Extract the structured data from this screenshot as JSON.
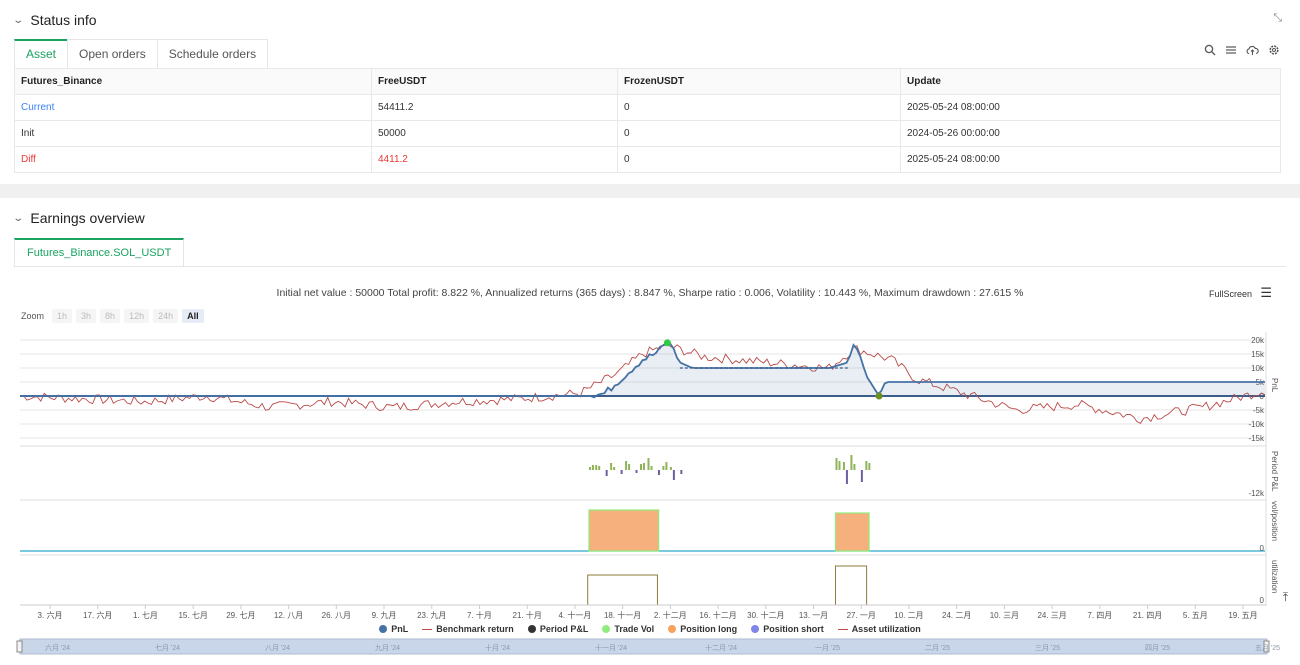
{
  "status": {
    "title": "Status info",
    "tabs": [
      "Asset",
      "Open orders",
      "Schedule orders"
    ],
    "table": {
      "headers": [
        "Futures_Binance",
        "FreeUSDT",
        "FrozenUSDT",
        "Update"
      ],
      "rows": [
        {
          "label": "Current",
          "free": "54411.2",
          "frozen": "0",
          "update": "2025-05-24 08:00:00"
        },
        {
          "label": "Init",
          "free": "50000",
          "frozen": "0",
          "update": "2024-05-26 00:00:00"
        },
        {
          "label": "Diff",
          "free": "4411.2",
          "frozen": "0",
          "update": "2025-05-24 08:00:00"
        }
      ]
    },
    "icons": [
      "search-icon",
      "list-icon",
      "cloud-upload-icon",
      "gear-icon",
      "expand-icon"
    ]
  },
  "earnings": {
    "title": "Earnings overview",
    "symbol_tab": "Futures_Binance.SOL_USDT",
    "summary": "Initial net value : 50000 Total profit: 8.822 %, Annualized returns (365 days) : 8.847 %, Sharpe ratio : 0.006, Volatility : 10.443 %, Maximum drawdown : 27.615 %",
    "fullscreen_label": "FullScreen",
    "zoom_label": "Zoom",
    "zoom_options": [
      "1h",
      "3h",
      "8h",
      "12h",
      "24h",
      "All"
    ],
    "zoom_selected": "All"
  },
  "chart_data": {
    "type": "line",
    "panes": [
      "PnL",
      "Period P&L",
      "vol/position",
      "utilization"
    ],
    "pnl_ticks": [
      "20k",
      "15k",
      "10k",
      "5k",
      "0",
      "-5k",
      "-10k",
      "-15k"
    ],
    "pnl_tick_values": [
      20000,
      15000,
      10000,
      5000,
      0,
      -5000,
      -10000,
      -15000
    ],
    "period_tick": "-12k",
    "vol_tick": "0",
    "util_tick": "0",
    "x_ticks": [
      "3. 六月",
      "17. 六月",
      "1. 七月",
      "15. 七月",
      "29. 七月",
      "12. 八月",
      "26. 八月",
      "9. 九月",
      "23. 九月",
      "7. 十月",
      "21. 十月",
      "4. 十一月",
      "18. 十一月",
      "2. 十二月",
      "16. 十二月",
      "30. 十二月",
      "13. 一月",
      "27. 一月",
      "10. 二月",
      "24. 二月",
      "10. 三月",
      "24. 三月",
      "7. 四月",
      "21. 四月",
      "5. 五月",
      "19. 五月"
    ],
    "navigator_ticks": [
      "六月 '24",
      "七月 '24",
      "八月 '24",
      "九月 '24",
      "十月 '24",
      "十一月 '24",
      "十二月 '24",
      "一月 '25",
      "二月 '25",
      "三月 '25",
      "四月 '25",
      "五月 '25"
    ],
    "series": [
      {
        "name": "PnL",
        "color": "#4572a7",
        "points": [
          [
            0,
            0
          ],
          [
            0.46,
            0
          ],
          [
            0.47,
            1000
          ],
          [
            0.48,
            5000
          ],
          [
            0.49,
            9000
          ],
          [
            0.5,
            13000
          ],
          [
            0.51,
            15000
          ],
          [
            0.52,
            19000
          ],
          [
            0.525,
            17000
          ],
          [
            0.53,
            12000
          ],
          [
            0.54,
            10000
          ],
          [
            0.56,
            10000
          ],
          [
            0.6,
            10000
          ],
          [
            0.65,
            10000
          ],
          [
            0.665,
            12000
          ],
          [
            0.67,
            19000
          ],
          [
            0.675,
            14000
          ],
          [
            0.68,
            7000
          ],
          [
            0.69,
            0
          ],
          [
            0.695,
            5000
          ],
          [
            0.75,
            5000
          ],
          [
            0.8,
            5000
          ],
          [
            0.9,
            5000
          ],
          [
            1,
            5000
          ]
        ]
      },
      {
        "name": "Benchmark return",
        "color": "#b94a48",
        "points": [
          [
            0,
            0
          ],
          [
            0.05,
            -1000
          ],
          [
            0.1,
            -2000
          ],
          [
            0.15,
            0
          ],
          [
            0.2,
            -4000
          ],
          [
            0.25,
            -2000
          ],
          [
            0.3,
            -4000
          ],
          [
            0.35,
            -2000
          ],
          [
            0.4,
            -1000
          ],
          [
            0.45,
            1000
          ],
          [
            0.48,
            8000
          ],
          [
            0.5,
            15000
          ],
          [
            0.52,
            18000
          ],
          [
            0.55,
            14000
          ],
          [
            0.6,
            12000
          ],
          [
            0.65,
            10000
          ],
          [
            0.67,
            17000
          ],
          [
            0.7,
            13000
          ],
          [
            0.72,
            6000
          ],
          [
            0.75,
            2000
          ],
          [
            0.8,
            -5000
          ],
          [
            0.85,
            -3000
          ],
          [
            0.9,
            -8000
          ],
          [
            0.95,
            -4000
          ],
          [
            1,
            2000
          ]
        ]
      },
      {
        "name": "Period P&L",
        "color": "#333333"
      },
      {
        "name": "Trade Vol",
        "color": "#90ed7d"
      },
      {
        "name": "Position long",
        "color": "#f7a35c"
      },
      {
        "name": "Position short",
        "color": "#8085e9"
      },
      {
        "name": "Asset utilization",
        "color": "#b94a48"
      }
    ]
  }
}
